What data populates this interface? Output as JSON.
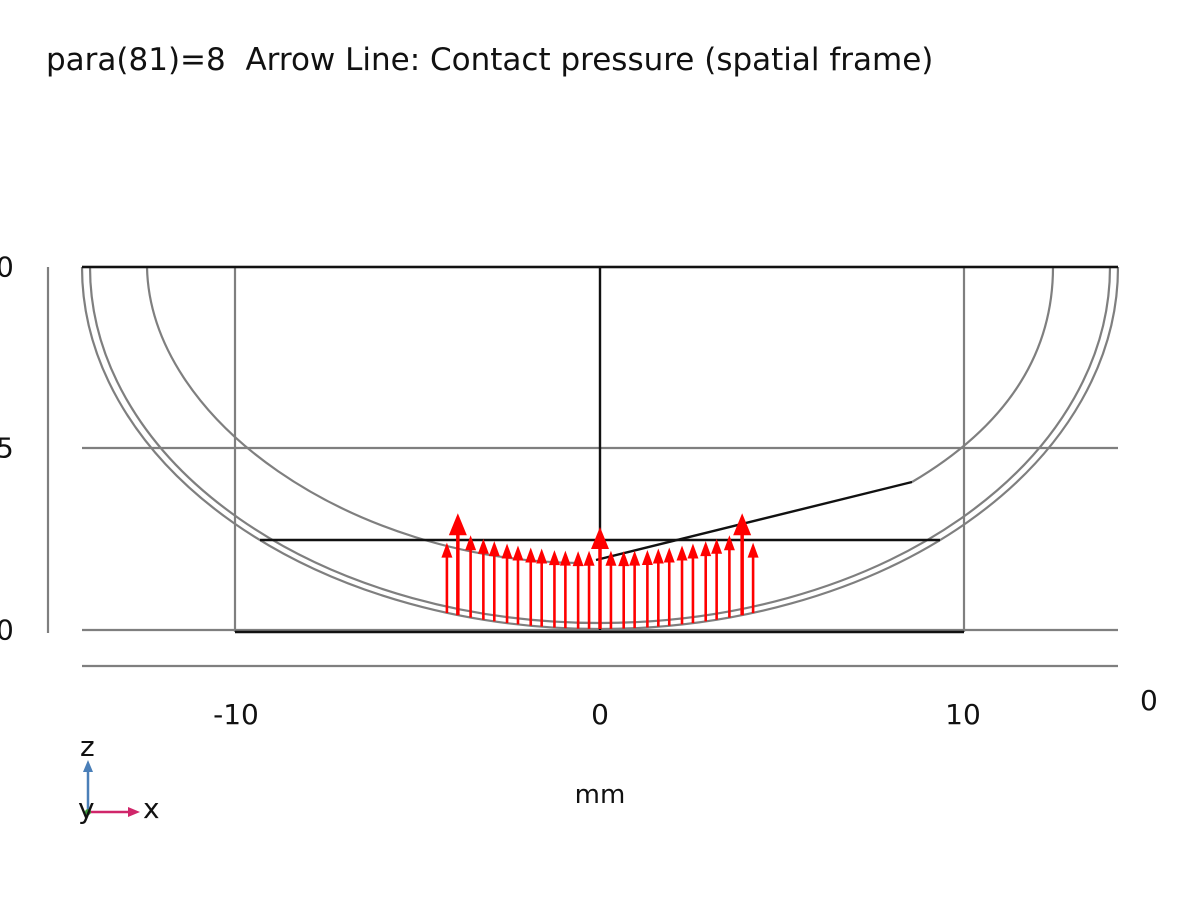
{
  "title": {
    "parameter": "para(81)=8",
    "plot_name": "Arrow Line: Contact pressure (spatial frame)"
  },
  "axes": {
    "x_unit": "mm",
    "x_ticks": [
      "-10",
      "0",
      "10"
    ],
    "y_ticks": [
      "0",
      "5",
      "0"
    ],
    "right_edge_tick": "0"
  },
  "triad": {
    "z": "z",
    "y": "y",
    "x": "x"
  },
  "colors": {
    "arrows": "#ff0000",
    "geometry_gray": "#7f7f7f",
    "geometry_black": "#111111",
    "triad_x": "#d0266a",
    "triad_z": "#4a7fb8",
    "triad_y": "#3a9a3a"
  },
  "chart_data": {
    "type": "arrow-line",
    "quantity": "Contact pressure (spatial frame)",
    "x_range_mm": [
      -14.2,
      14.2
    ],
    "contact_arrows": {
      "x_mm": [
        -4.2,
        -3.9,
        -3.55,
        -3.2,
        -2.9,
        -2.55,
        -2.25,
        -1.9,
        -1.6,
        -1.25,
        -0.95,
        -0.6,
        -0.3,
        0.0,
        0.3,
        0.65,
        0.95,
        1.3,
        1.6,
        1.9,
        2.25,
        2.55,
        2.9,
        3.2,
        3.55,
        3.9,
        4.2
      ],
      "relative_magnitude": [
        0.55,
        1.0,
        0.72,
        0.7,
        0.69,
        0.68,
        0.67,
        0.66,
        0.66,
        0.65,
        0.65,
        0.65,
        0.66,
        1.0,
        0.66,
        0.65,
        0.65,
        0.65,
        0.66,
        0.66,
        0.67,
        0.68,
        0.69,
        0.7,
        0.72,
        1.0,
        0.55
      ]
    }
  }
}
